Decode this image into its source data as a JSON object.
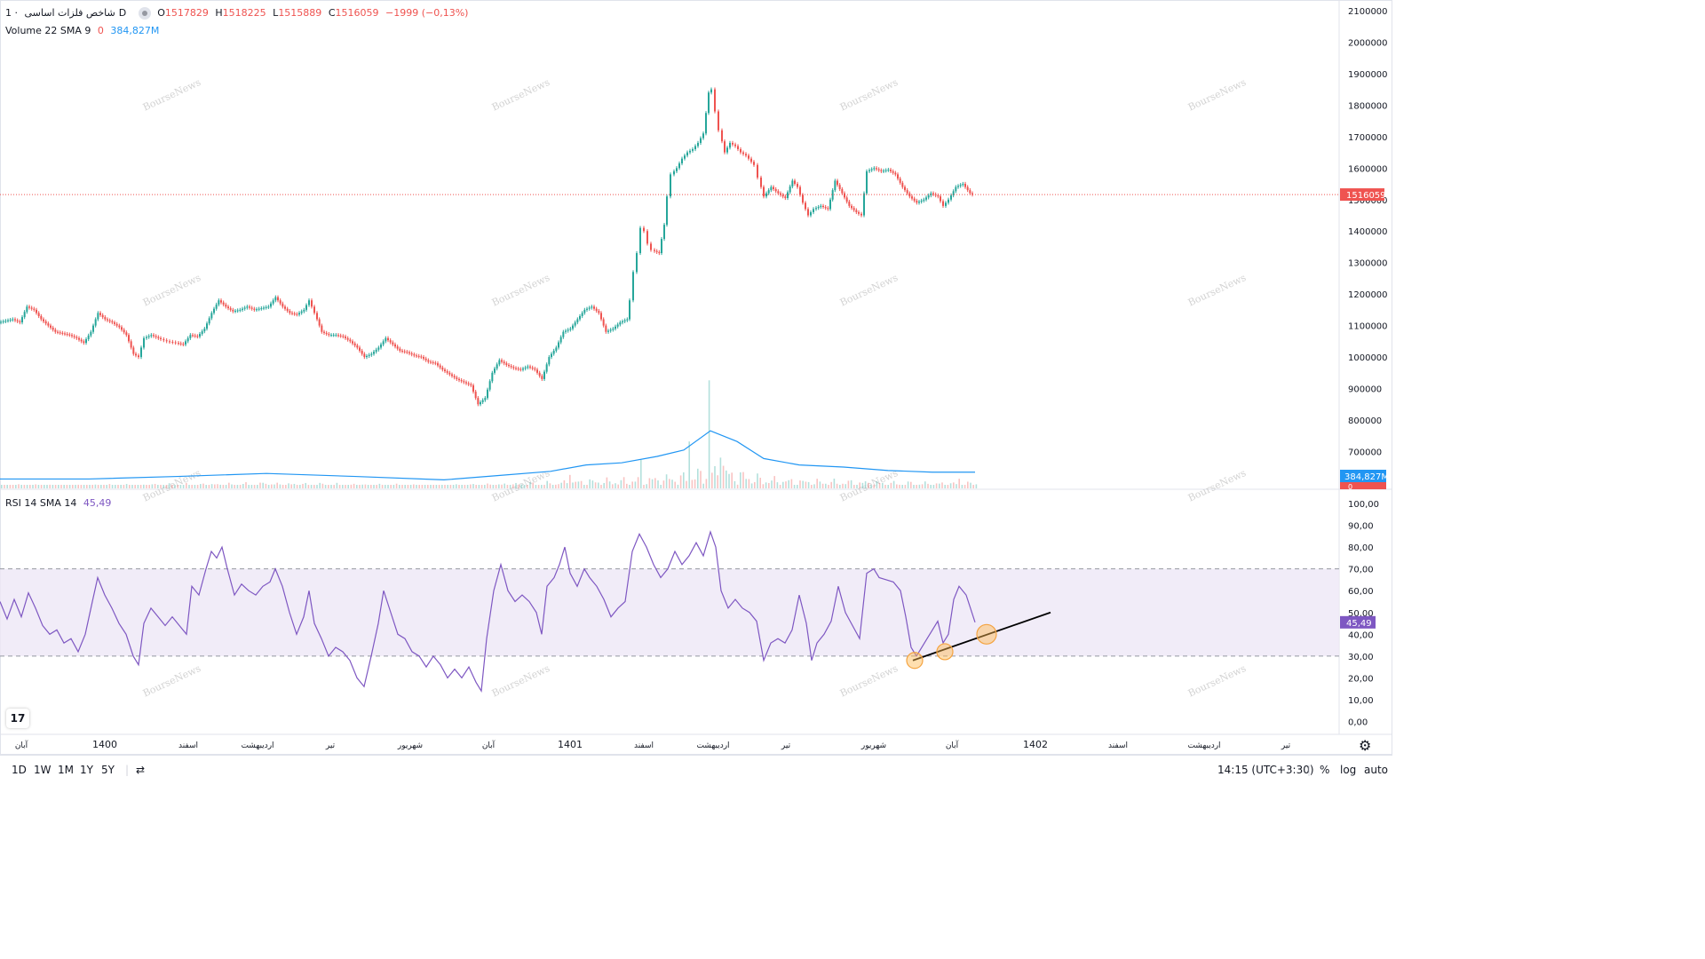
{
  "legend_main": {
    "symbol": "شاخص فلزات اساسی",
    "sep": "·",
    "interval": "1D",
    "o_label": "O",
    "o_value": "1517829",
    "h_label": "H",
    "h_value": "1518225",
    "l_label": "L",
    "l_value": "1515889",
    "c_label": "C",
    "c_value": "1516059",
    "change": "−1999 (−0,13%)"
  },
  "legend_vol": {
    "label": "Volume 22 SMA 9",
    "value1": "0",
    "value2": "384,827M"
  },
  "legend_rsi": {
    "label": "RSI 14 SMA 14",
    "value": "45,49"
  },
  "watermark": "BourseNews",
  "colors": {
    "up": "#26a69a",
    "down": "#ef5350",
    "rsi": "#7e57c2",
    "vol_sma": "#2196f3",
    "band": "#ede7f6"
  },
  "bottombar": {
    "timeframes": [
      "1D",
      "1W",
      "1M",
      "1Y",
      "5Y"
    ],
    "clock": "14:15 (UTC+3:30)",
    "percent": "%",
    "log": "log",
    "auto": "auto"
  },
  "icons": {
    "logo": "tradingview-logo-icon",
    "settings": "gear-icon",
    "compare": "date-range-icon",
    "visibility": "eye-icon"
  },
  "chart_data": [
    {
      "type": "candlestick",
      "title": "شاخص فلزات اساسی",
      "price_axis": [
        "2100000",
        "2000000",
        "1900000",
        "1800000",
        "1700000",
        "1600000",
        "1500000",
        "1400000",
        "1300000",
        "1200000",
        "1100000",
        "1000000",
        "900000",
        "800000",
        "700000"
      ],
      "ylim": [
        680000,
        2120000
      ],
      "last_price_label": "1516059",
      "time_axis": [
        "آبان",
        "1400",
        "اسفند",
        "اردیبهشت",
        "تیر",
        "شهریور",
        "آبان",
        "1401",
        "اسفند",
        "اردیبهشت",
        "تیر",
        "شهریور",
        "آبان",
        "1402",
        "اسفند",
        "اردیبهشت",
        "تیر"
      ],
      "close_path": [
        [
          0,
          1110000
        ],
        [
          8,
          1115000
        ],
        [
          16,
          1120000
        ],
        [
          24,
          1110000
        ],
        [
          32,
          1160000
        ],
        [
          40,
          1150000
        ],
        [
          48,
          1120000
        ],
        [
          56,
          1100000
        ],
        [
          64,
          1080000
        ],
        [
          72,
          1075000
        ],
        [
          80,
          1070000
        ],
        [
          88,
          1060000
        ],
        [
          96,
          1045000
        ],
        [
          104,
          1080000
        ],
        [
          112,
          1140000
        ],
        [
          120,
          1120000
        ],
        [
          128,
          1110000
        ],
        [
          136,
          1095000
        ],
        [
          144,
          1070000
        ],
        [
          152,
          1010000
        ],
        [
          158,
          1000000
        ],
        [
          164,
          1060000
        ],
        [
          172,
          1070000
        ],
        [
          180,
          1060000
        ],
        [
          190,
          1050000
        ],
        [
          200,
          1045000
        ],
        [
          208,
          1040000
        ],
        [
          216,
          1070000
        ],
        [
          224,
          1065000
        ],
        [
          232,
          1090000
        ],
        [
          240,
          1140000
        ],
        [
          248,
          1180000
        ],
        [
          256,
          1160000
        ],
        [
          264,
          1145000
        ],
        [
          272,
          1150000
        ],
        [
          280,
          1160000
        ],
        [
          288,
          1150000
        ],
        [
          296,
          1155000
        ],
        [
          304,
          1160000
        ],
        [
          312,
          1190000
        ],
        [
          320,
          1160000
        ],
        [
          328,
          1140000
        ],
        [
          336,
          1135000
        ],
        [
          344,
          1150000
        ],
        [
          350,
          1180000
        ],
        [
          356,
          1140000
        ],
        [
          364,
          1080000
        ],
        [
          372,
          1070000
        ],
        [
          380,
          1070000
        ],
        [
          388,
          1065000
        ],
        [
          396,
          1050000
        ],
        [
          404,
          1030000
        ],
        [
          412,
          1000000
        ],
        [
          420,
          1010000
        ],
        [
          428,
          1030000
        ],
        [
          436,
          1060000
        ],
        [
          444,
          1040000
        ],
        [
          452,
          1020000
        ],
        [
          460,
          1015000
        ],
        [
          468,
          1005000
        ],
        [
          476,
          1000000
        ],
        [
          484,
          985000
        ],
        [
          492,
          980000
        ],
        [
          500,
          960000
        ],
        [
          508,
          945000
        ],
        [
          516,
          930000
        ],
        [
          524,
          920000
        ],
        [
          532,
          910000
        ],
        [
          540,
          850000
        ],
        [
          548,
          870000
        ],
        [
          556,
          950000
        ],
        [
          564,
          990000
        ],
        [
          572,
          975000
        ],
        [
          580,
          965000
        ],
        [
          588,
          960000
        ],
        [
          596,
          970000
        ],
        [
          604,
          960000
        ],
        [
          612,
          930000
        ],
        [
          620,
          1000000
        ],
        [
          628,
          1030000
        ],
        [
          636,
          1080000
        ],
        [
          644,
          1090000
        ],
        [
          652,
          1120000
        ],
        [
          660,
          1150000
        ],
        [
          668,
          1160000
        ],
        [
          676,
          1140000
        ],
        [
          684,
          1080000
        ],
        [
          692,
          1090000
        ],
        [
          700,
          1110000
        ],
        [
          708,
          1120000
        ],
        [
          712,
          1180000
        ],
        [
          716,
          1270000
        ],
        [
          720,
          1330000
        ],
        [
          724,
          1410000
        ],
        [
          728,
          1400000
        ],
        [
          732,
          1360000
        ],
        [
          736,
          1340000
        ],
        [
          744,
          1330000
        ],
        [
          750,
          1420000
        ],
        [
          754,
          1510000
        ],
        [
          758,
          1580000
        ],
        [
          764,
          1600000
        ],
        [
          770,
          1630000
        ],
        [
          776,
          1650000
        ],
        [
          782,
          1660000
        ],
        [
          788,
          1680000
        ],
        [
          794,
          1710000
        ],
        [
          800,
          1840000
        ],
        [
          804,
          1850000
        ],
        [
          808,
          1780000
        ],
        [
          812,
          1720000
        ],
        [
          818,
          1650000
        ],
        [
          824,
          1680000
        ],
        [
          830,
          1670000
        ],
        [
          836,
          1650000
        ],
        [
          842,
          1640000
        ],
        [
          848,
          1620000
        ],
        [
          852,
          1610000
        ],
        [
          856,
          1570000
        ],
        [
          862,
          1510000
        ],
        [
          870,
          1540000
        ],
        [
          878,
          1520000
        ],
        [
          886,
          1505000
        ],
        [
          894,
          1560000
        ],
        [
          900,
          1540000
        ],
        [
          906,
          1490000
        ],
        [
          912,
          1450000
        ],
        [
          918,
          1470000
        ],
        [
          926,
          1480000
        ],
        [
          934,
          1470000
        ],
        [
          942,
          1560000
        ],
        [
          950,
          1520000
        ],
        [
          958,
          1480000
        ],
        [
          966,
          1460000
        ],
        [
          972,
          1450000
        ],
        [
          978,
          1590000
        ],
        [
          986,
          1600000
        ],
        [
          994,
          1590000
        ],
        [
          1002,
          1595000
        ],
        [
          1010,
          1580000
        ],
        [
          1018,
          1540000
        ],
        [
          1026,
          1510000
        ],
        [
          1034,
          1490000
        ],
        [
          1042,
          1500000
        ],
        [
          1050,
          1520000
        ],
        [
          1058,
          1510000
        ],
        [
          1064,
          1480000
        ],
        [
          1070,
          1500000
        ],
        [
          1078,
          1540000
        ],
        [
          1086,
          1550000
        ],
        [
          1094,
          1520000
        ],
        [
          1098,
          1516059
        ]
      ]
    },
    {
      "type": "bar",
      "title": "Volume 22 SMA 9",
      "last_value_label": "384,827M",
      "zero_label": "0",
      "sma_path": [
        [
          0,
          0.22
        ],
        [
          100,
          0.22
        ],
        [
          200,
          0.28
        ],
        [
          300,
          0.35
        ],
        [
          400,
          0.28
        ],
        [
          500,
          0.2
        ],
        [
          560,
          0.3
        ],
        [
          620,
          0.4
        ],
        [
          660,
          0.55
        ],
        [
          700,
          0.6
        ],
        [
          740,
          0.75
        ],
        [
          770,
          0.9
        ],
        [
          800,
          1.35
        ],
        [
          830,
          1.1
        ],
        [
          860,
          0.7
        ],
        [
          900,
          0.55
        ],
        [
          950,
          0.5
        ],
        [
          1000,
          0.42
        ],
        [
          1050,
          0.38
        ],
        [
          1098,
          0.38
        ]
      ],
      "spikes": [
        [
          175,
          0.8
        ],
        [
          300,
          0.7
        ],
        [
          640,
          1.2
        ],
        [
          720,
          1.8
        ],
        [
          776,
          1.7
        ],
        [
          798,
          2.5
        ],
        [
          812,
          1.3
        ],
        [
          1080,
          0.9
        ]
      ]
    },
    {
      "type": "line",
      "title": "RSI 14 SMA 14",
      "last_value_label": "45,49",
      "rsi_axis": [
        "100,00",
        "90,00",
        "80,00",
        "70,00",
        "60,00",
        "50,00",
        "40,00",
        "30,00",
        "20,00",
        "10,00",
        "0,00"
      ],
      "ylim": [
        0,
        100
      ],
      "band": [
        30,
        70
      ],
      "path": [
        [
          0,
          55
        ],
        [
          8,
          47
        ],
        [
          16,
          56
        ],
        [
          24,
          48
        ],
        [
          32,
          59
        ],
        [
          40,
          52
        ],
        [
          48,
          44
        ],
        [
          56,
          40
        ],
        [
          64,
          42
        ],
        [
          72,
          36
        ],
        [
          80,
          38
        ],
        [
          88,
          32
        ],
        [
          96,
          40
        ],
        [
          104,
          55
        ],
        [
          110,
          66
        ],
        [
          118,
          58
        ],
        [
          126,
          52
        ],
        [
          134,
          45
        ],
        [
          142,
          40
        ],
        [
          150,
          30
        ],
        [
          156,
          26
        ],
        [
          162,
          45
        ],
        [
          170,
          52
        ],
        [
          178,
          48
        ],
        [
          186,
          44
        ],
        [
          194,
          48
        ],
        [
          202,
          44
        ],
        [
          210,
          40
        ],
        [
          216,
          62
        ],
        [
          224,
          58
        ],
        [
          232,
          70
        ],
        [
          238,
          78
        ],
        [
          244,
          75
        ],
        [
          250,
          80
        ],
        [
          256,
          70
        ],
        [
          264,
          58
        ],
        [
          272,
          63
        ],
        [
          280,
          60
        ],
        [
          288,
          58
        ],
        [
          296,
          62
        ],
        [
          304,
          64
        ],
        [
          310,
          70
        ],
        [
          318,
          62
        ],
        [
          326,
          50
        ],
        [
          334,
          40
        ],
        [
          342,
          48
        ],
        [
          348,
          60
        ],
        [
          354,
          45
        ],
        [
          362,
          38
        ],
        [
          370,
          30
        ],
        [
          378,
          34
        ],
        [
          386,
          32
        ],
        [
          394,
          28
        ],
        [
          402,
          20
        ],
        [
          410,
          16
        ],
        [
          418,
          30
        ],
        [
          426,
          45
        ],
        [
          432,
          60
        ],
        [
          440,
          50
        ],
        [
          448,
          40
        ],
        [
          456,
          38
        ],
        [
          464,
          32
        ],
        [
          472,
          30
        ],
        [
          480,
          25
        ],
        [
          488,
          30
        ],
        [
          496,
          26
        ],
        [
          504,
          20
        ],
        [
          512,
          24
        ],
        [
          520,
          20
        ],
        [
          528,
          25
        ],
        [
          536,
          18
        ],
        [
          542,
          14
        ],
        [
          548,
          38
        ],
        [
          556,
          60
        ],
        [
          564,
          72
        ],
        [
          572,
          60
        ],
        [
          580,
          55
        ],
        [
          588,
          58
        ],
        [
          596,
          55
        ],
        [
          604,
          50
        ],
        [
          610,
          40
        ],
        [
          616,
          62
        ],
        [
          624,
          66
        ],
        [
          630,
          72
        ],
        [
          636,
          80
        ],
        [
          642,
          68
        ],
        [
          650,
          62
        ],
        [
          658,
          70
        ],
        [
          664,
          66
        ],
        [
          672,
          62
        ],
        [
          680,
          56
        ],
        [
          688,
          48
        ],
        [
          696,
          52
        ],
        [
          704,
          55
        ],
        [
          712,
          78
        ],
        [
          720,
          86
        ],
        [
          728,
          80
        ],
        [
          736,
          72
        ],
        [
          744,
          66
        ],
        [
          752,
          70
        ],
        [
          760,
          78
        ],
        [
          768,
          72
        ],
        [
          776,
          76
        ],
        [
          784,
          82
        ],
        [
          792,
          76
        ],
        [
          800,
          87
        ],
        [
          806,
          80
        ],
        [
          812,
          60
        ],
        [
          820,
          52
        ],
        [
          828,
          56
        ],
        [
          836,
          52
        ],
        [
          844,
          50
        ],
        [
          852,
          46
        ],
        [
          860,
          28
        ],
        [
          868,
          36
        ],
        [
          876,
          38
        ],
        [
          884,
          36
        ],
        [
          892,
          42
        ],
        [
          900,
          58
        ],
        [
          908,
          45
        ],
        [
          914,
          28
        ],
        [
          920,
          36
        ],
        [
          928,
          40
        ],
        [
          936,
          46
        ],
        [
          944,
          62
        ],
        [
          952,
          50
        ],
        [
          960,
          44
        ],
        [
          968,
          38
        ],
        [
          976,
          68
        ],
        [
          984,
          70
        ],
        [
          990,
          66
        ],
        [
          998,
          65
        ],
        [
          1006,
          64
        ],
        [
          1014,
          60
        ],
        [
          1020,
          48
        ],
        [
          1026,
          34
        ],
        [
          1032,
          30
        ],
        [
          1038,
          34
        ],
        [
          1044,
          38
        ],
        [
          1050,
          42
        ],
        [
          1056,
          46
        ],
        [
          1062,
          36
        ],
        [
          1068,
          40
        ],
        [
          1074,
          56
        ],
        [
          1080,
          62
        ],
        [
          1088,
          58
        ],
        [
          1098,
          45.49
        ]
      ],
      "trendline": [
        [
          1028,
          28
        ],
        [
          1183,
          50
        ]
      ],
      "highlights": [
        [
          1030,
          28
        ],
        [
          1064,
          32
        ],
        [
          1111,
          40
        ]
      ]
    }
  ]
}
